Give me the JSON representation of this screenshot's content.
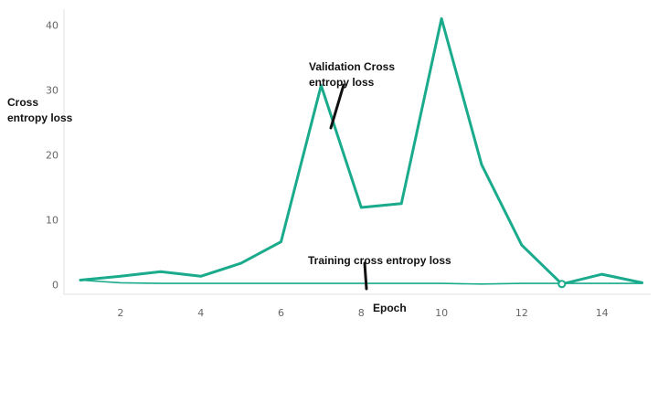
{
  "chart_data": {
    "type": "line",
    "xlabel": "Epoch",
    "ylabel": [
      "Cross",
      "entropy loss"
    ],
    "x": [
      1,
      2,
      3,
      4,
      5,
      6,
      7,
      8,
      9,
      10,
      11,
      12,
      13,
      14,
      15
    ],
    "xticks": [
      2,
      4,
      6,
      8,
      10,
      12,
      14
    ],
    "yticks": [
      0,
      10,
      20,
      30,
      40
    ],
    "xlim": [
      0.7,
      15.2
    ],
    "ylim": [
      -1,
      42
    ],
    "grid": false,
    "series": [
      {
        "name": "Validation Cross entropy loss",
        "values": [
          0.7,
          1.3,
          2.0,
          1.3,
          3.3,
          6.6,
          30.7,
          11.9,
          12.5,
          41.0,
          18.5,
          6.1,
          0.1,
          1.6,
          0.3
        ],
        "color": "#1aaa8c"
      },
      {
        "name": "Training cross entropy loss",
        "values": [
          0.7,
          0.3,
          0.2,
          0.2,
          0.2,
          0.2,
          0.2,
          0.2,
          0.2,
          0.2,
          0.1,
          0.2,
          0.2,
          0.2,
          0.2
        ],
        "color": "#1aaa8c"
      }
    ],
    "annotations": [
      {
        "text": [
          "Validation Cross",
          "entropy loss"
        ]
      },
      {
        "text": [
          "Training cross entropy loss"
        ]
      }
    ],
    "marker": {
      "x": 13,
      "y": 0.1
    }
  }
}
